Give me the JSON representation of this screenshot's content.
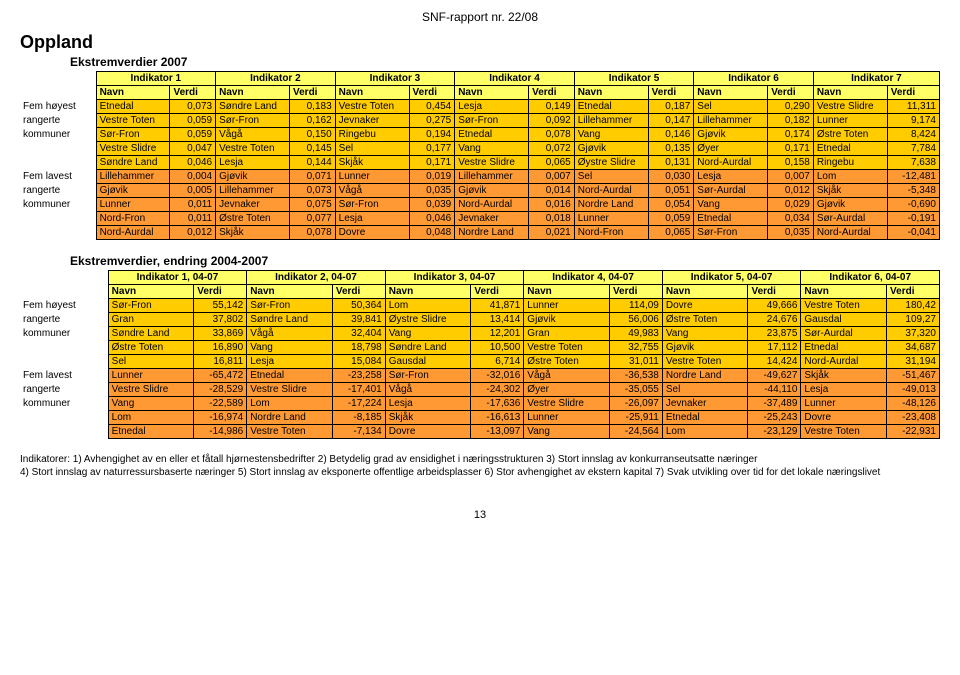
{
  "headerText": "SNF-rapport nr. 22/08",
  "regionTitle": "Oppland",
  "table1": {
    "subtitle": "Ekstremverdier 2007",
    "indicatorHeaders": [
      "Indikator 1",
      "Indikator 2",
      "Indikator 3",
      "Indikator 4",
      "Indikator 5",
      "Indikator 6",
      "Indikator 7"
    ],
    "nvHeader": {
      "name": "Navn",
      "value": "Verdi"
    },
    "groupHigh": [
      "Fem høyest",
      "rangerte",
      "kommuner",
      "",
      ""
    ],
    "groupLow": [
      "Fem lavest",
      "rangerte",
      "kommuner",
      "",
      ""
    ],
    "highRows": [
      [
        [
          "Etnedal",
          "0,073"
        ],
        [
          "Søndre Land",
          "0,183"
        ],
        [
          "Vestre Toten",
          "0,454"
        ],
        [
          "Lesja",
          "0,149"
        ],
        [
          "Etnedal",
          "0,187"
        ],
        [
          "Sel",
          "0,290"
        ],
        [
          "Vestre Slidre",
          "11,311"
        ]
      ],
      [
        [
          "Vestre Toten",
          "0,059"
        ],
        [
          "Sør-Fron",
          "0,162"
        ],
        [
          "Jevnaker",
          "0,275"
        ],
        [
          "Sør-Fron",
          "0,092"
        ],
        [
          "Lillehammer",
          "0,147"
        ],
        [
          "Lillehammer",
          "0,182"
        ],
        [
          "Lunner",
          "9,174"
        ]
      ],
      [
        [
          "Sør-Fron",
          "0,059"
        ],
        [
          "Vågå",
          "0,150"
        ],
        [
          "Ringebu",
          "0,194"
        ],
        [
          "Etnedal",
          "0,078"
        ],
        [
          "Vang",
          "0,146"
        ],
        [
          "Gjøvik",
          "0,174"
        ],
        [
          "Østre Toten",
          "8,424"
        ]
      ],
      [
        [
          "Vestre Slidre",
          "0,047"
        ],
        [
          "Vestre Toten",
          "0,145"
        ],
        [
          "Sel",
          "0,177"
        ],
        [
          "Vang",
          "0,072"
        ],
        [
          "Gjøvik",
          "0,135"
        ],
        [
          "Øyer",
          "0,171"
        ],
        [
          "Etnedal",
          "7,784"
        ]
      ],
      [
        [
          "Søndre Land",
          "0,046"
        ],
        [
          "Lesja",
          "0,144"
        ],
        [
          "Skjåk",
          "0,171"
        ],
        [
          "Vestre Slidre",
          "0,065"
        ],
        [
          "Øystre Slidre",
          "0,131"
        ],
        [
          "Nord-Aurdal",
          "0,158"
        ],
        [
          "Ringebu",
          "7,638"
        ]
      ]
    ],
    "lowRows": [
      [
        [
          "Lillehammer",
          "0,004"
        ],
        [
          "Gjøvik",
          "0,071"
        ],
        [
          "Lunner",
          "0,019"
        ],
        [
          "Lillehammer",
          "0,007"
        ],
        [
          "Sel",
          "0,030"
        ],
        [
          "Lesja",
          "0,007"
        ],
        [
          "Lom",
          "-12,481"
        ]
      ],
      [
        [
          "Gjøvik",
          "0,005"
        ],
        [
          "Lillehammer",
          "0,073"
        ],
        [
          "Vågå",
          "0,035"
        ],
        [
          "Gjøvik",
          "0,014"
        ],
        [
          "Nord-Aurdal",
          "0,051"
        ],
        [
          "Sør-Aurdal",
          "0,012"
        ],
        [
          "Skjåk",
          "-5,348"
        ]
      ],
      [
        [
          "Lunner",
          "0,011"
        ],
        [
          "Jevnaker",
          "0,075"
        ],
        [
          "Sør-Fron",
          "0,039"
        ],
        [
          "Nord-Aurdal",
          "0,016"
        ],
        [
          "Nordre Land",
          "0,054"
        ],
        [
          "Vang",
          "0,029"
        ],
        [
          "Gjøvik",
          "-0,690"
        ]
      ],
      [
        [
          "Nord-Fron",
          "0,011"
        ],
        [
          "Østre Toten",
          "0,077"
        ],
        [
          "Lesja",
          "0,046"
        ],
        [
          "Jevnaker",
          "0,018"
        ],
        [
          "Lunner",
          "0,059"
        ],
        [
          "Etnedal",
          "0,034"
        ],
        [
          "Sør-Aurdal",
          "-0,191"
        ]
      ],
      [
        [
          "Nord-Aurdal",
          "0,012"
        ],
        [
          "Skjåk",
          "0,078"
        ],
        [
          "Dovre",
          "0,048"
        ],
        [
          "Nordre Land",
          "0,021"
        ],
        [
          "Nord-Fron",
          "0,065"
        ],
        [
          "Sør-Fron",
          "0,035"
        ],
        [
          "Nord-Aurdal",
          "-0,041"
        ]
      ]
    ]
  },
  "table2": {
    "subtitle": "Ekstremverdier, endring 2004-2007",
    "indicatorHeaders": [
      "Indikator 1, 04-07",
      "Indikator 2, 04-07",
      "Indikator 3, 04-07",
      "Indikator 4, 04-07",
      "Indikator 5, 04-07",
      "Indikator 6, 04-07"
    ],
    "nvHeader": {
      "name": "Navn",
      "value": "Verdi"
    },
    "groupHigh": [
      "Fem høyest",
      "rangerte",
      "kommuner",
      "",
      ""
    ],
    "groupLow": [
      "Fem lavest",
      "rangerte",
      "kommuner",
      "",
      ""
    ],
    "highRows": [
      [
        [
          "Sør-Fron",
          "55,142"
        ],
        [
          "Sør-Fron",
          "50,364"
        ],
        [
          "Lom",
          "41,871"
        ],
        [
          "Lunner",
          "114,09"
        ],
        [
          "Dovre",
          "49,666"
        ],
        [
          "Vestre Toten",
          "180,42"
        ]
      ],
      [
        [
          "Gran",
          "37,802"
        ],
        [
          "Søndre Land",
          "39,841"
        ],
        [
          "Øystre Slidre",
          "13,414"
        ],
        [
          "Gjøvik",
          "56,006"
        ],
        [
          "Østre Toten",
          "24,676"
        ],
        [
          "Gausdal",
          "109,27"
        ]
      ],
      [
        [
          "Søndre Land",
          "33,869"
        ],
        [
          "Vågå",
          "32,404"
        ],
        [
          "Vang",
          "12,201"
        ],
        [
          "Gran",
          "49,983"
        ],
        [
          "Vang",
          "23,875"
        ],
        [
          "Sør-Aurdal",
          "37,320"
        ]
      ],
      [
        [
          "Østre Toten",
          "16,890"
        ],
        [
          "Vang",
          "18,798"
        ],
        [
          "Søndre Land",
          "10,500"
        ],
        [
          "Vestre Toten",
          "32,755"
        ],
        [
          "Gjøvik",
          "17,112"
        ],
        [
          "Etnedal",
          "34,687"
        ]
      ],
      [
        [
          "Sel",
          "16,811"
        ],
        [
          "Lesja",
          "15,084"
        ],
        [
          "Gausdal",
          "6,714"
        ],
        [
          "Østre Toten",
          "31,011"
        ],
        [
          "Vestre Toten",
          "14,424"
        ],
        [
          "Nord-Aurdal",
          "31,194"
        ]
      ]
    ],
    "lowRows": [
      [
        [
          "Lunner",
          "-65,472"
        ],
        [
          "Etnedal",
          "-23,258"
        ],
        [
          "Sør-Fron",
          "-32,016"
        ],
        [
          "Vågå",
          "-36,538"
        ],
        [
          "Nordre Land",
          "-49,627"
        ],
        [
          "Skjåk",
          "-51,467"
        ]
      ],
      [
        [
          "Vestre Slidre",
          "-28,529"
        ],
        [
          "Vestre Slidre",
          "-17,401"
        ],
        [
          "Vågå",
          "-24,302"
        ],
        [
          "Øyer",
          "-35,055"
        ],
        [
          "Sel",
          "-44,110"
        ],
        [
          "Lesja",
          "-49,013"
        ]
      ],
      [
        [
          "Vang",
          "-22,589"
        ],
        [
          "Lom",
          "-17,224"
        ],
        [
          "Lesja",
          "-17,636"
        ],
        [
          "Vestre Slidre",
          "-26,097"
        ],
        [
          "Jevnaker",
          "-37,489"
        ],
        [
          "Lunner",
          "-48,126"
        ]
      ],
      [
        [
          "Lom",
          "-16,974"
        ],
        [
          "Nordre Land",
          "-8,185"
        ],
        [
          "Skjåk",
          "-16,613"
        ],
        [
          "Lunner",
          "-25,911"
        ],
        [
          "Etnedal",
          "-25,243"
        ],
        [
          "Dovre",
          "-23,408"
        ]
      ],
      [
        [
          "Etnedal",
          "-14,986"
        ],
        [
          "Vestre Toten",
          "-7,134"
        ],
        [
          "Dovre",
          "-13,097"
        ],
        [
          "Vang",
          "-24,564"
        ],
        [
          "Lom",
          "-23,129"
        ],
        [
          "Vestre Toten",
          "-22,931"
        ]
      ]
    ]
  },
  "footnote1": "Indikatorer: 1) Avhengighet av en eller et fåtall hjørnestensbedrifter 2) Betydelig grad av ensidighet i næringsstrukturen 3) Stort innslag av konkurranseutsatte næringer",
  "footnote2": "4) Stort innslag av naturressursbaserte næringer 5) Stort innslag av eksponerte offentlige arbeidsplasser 6) Stor avhengighet av ekstern kapital 7) Svak utvikling over tid for det lokale næringslivet",
  "pageNum": "13",
  "colors": {
    "headerBg": "#ffff66",
    "highBg": "#ffcc00",
    "lowBg": "#ff9933",
    "border": "#000000"
  }
}
